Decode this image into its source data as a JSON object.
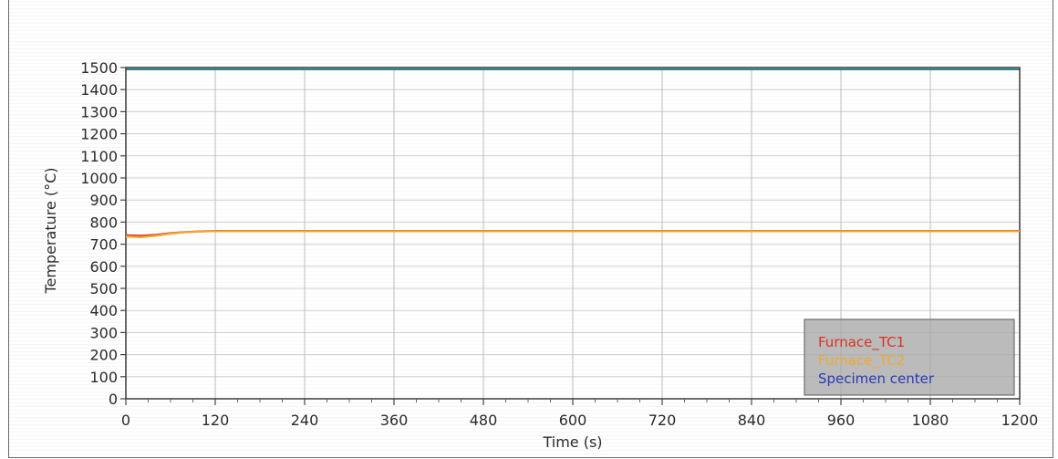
{
  "chart_data": {
    "type": "line",
    "title": "",
    "xlabel": "Time (s)",
    "ylabel": "Temperature (°C)",
    "xlim": [
      0,
      1200
    ],
    "ylim": [
      0,
      1500
    ],
    "x_ticks": [
      0,
      120,
      240,
      360,
      480,
      600,
      720,
      840,
      960,
      1080,
      1200
    ],
    "y_ticks": [
      0,
      100,
      200,
      300,
      400,
      500,
      600,
      700,
      800,
      900,
      1000,
      1100,
      1200,
      1300,
      1400,
      1500
    ],
    "grid": true,
    "legend_position": "bottom-right",
    "series": [
      {
        "name": "Furnace_TC1",
        "color": "#d9331f",
        "x": [
          0,
          20,
          40,
          60,
          80,
          100,
          120,
          180,
          240,
          360,
          480,
          600,
          720,
          840,
          960,
          1080,
          1200
        ],
        "y": [
          740,
          738,
          742,
          750,
          755,
          758,
          760,
          760,
          760,
          760,
          760,
          760,
          760,
          760,
          760,
          760,
          760
        ]
      },
      {
        "name": "Furnace_TC2",
        "color": "#f0a830",
        "x": [
          0,
          20,
          40,
          60,
          80,
          100,
          120,
          180,
          240,
          360,
          480,
          600,
          720,
          840,
          960,
          1080,
          1200
        ],
        "y": [
          735,
          732,
          738,
          748,
          754,
          757,
          759,
          759,
          759,
          759,
          759,
          759,
          759,
          759,
          759,
          759,
          759
        ]
      },
      {
        "name": "Specimen center",
        "color": "#2b3ab8",
        "x": [],
        "y": []
      }
    ]
  }
}
